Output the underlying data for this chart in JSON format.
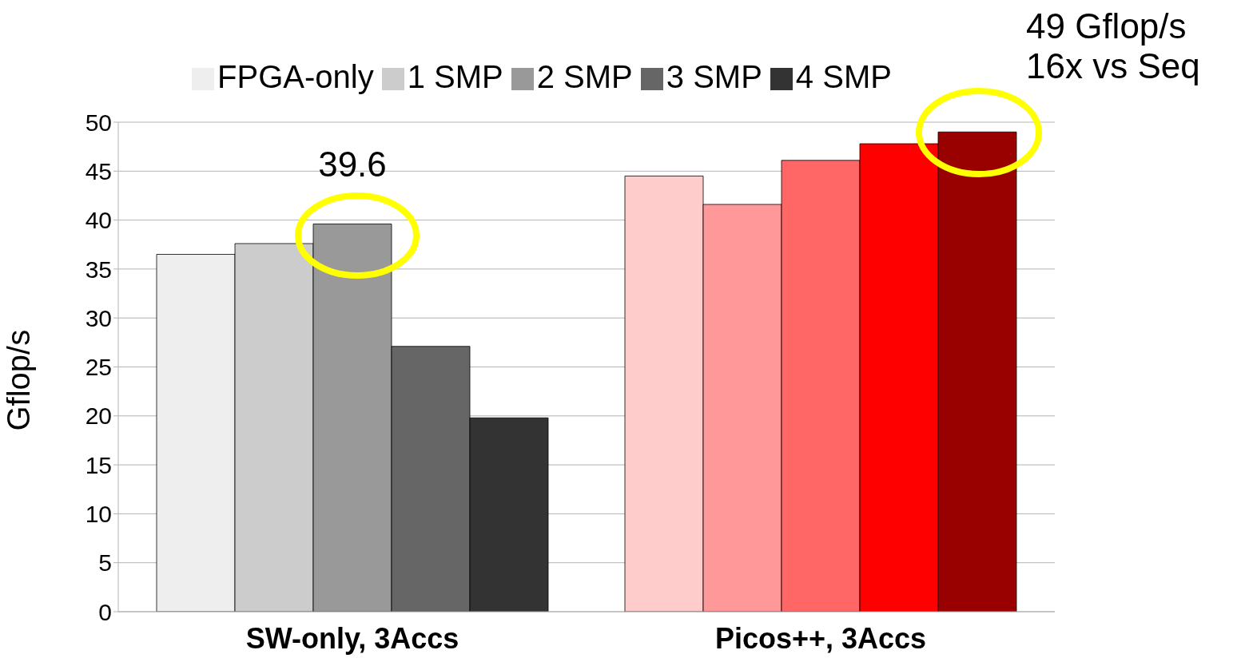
{
  "chart_data": {
    "type": "bar",
    "ylabel": "Gflop/s",
    "categories": [
      "SW-only, 3Accs",
      "Picos++, 3Accs"
    ],
    "series": [
      {
        "name": "FPGA-only",
        "color": "#eeeeee",
        "colors": [
          "#eeeeee",
          "#ffcccc"
        ],
        "values": [
          36.5,
          44.5
        ]
      },
      {
        "name": "1 SMP",
        "color": "#cccccc",
        "colors": [
          "#cccccc",
          "#ff9999"
        ],
        "values": [
          37.6,
          41.6
        ]
      },
      {
        "name": "2 SMP",
        "color": "#999999",
        "colors": [
          "#999999",
          "#ff6666"
        ],
        "values": [
          39.6,
          46.1
        ],
        "value_labels": [
          "39.6",
          null
        ]
      },
      {
        "name": "3 SMP",
        "color": "#666666",
        "colors": [
          "#666666",
          "#ff0000"
        ],
        "values": [
          27.1,
          47.8
        ]
      },
      {
        "name": "4 SMP",
        "color": "#333333",
        "colors": [
          "#333333",
          "#990000"
        ],
        "values": [
          19.8,
          49
        ]
      }
    ],
    "ylim": [
      0,
      50
    ],
    "yticks": [
      0,
      5,
      10,
      15,
      20,
      25,
      30,
      35,
      40,
      45,
      50
    ],
    "grid": "y",
    "legend": "top",
    "annotations": [
      "49 Gflop/s\n16x vs Seq"
    ]
  }
}
